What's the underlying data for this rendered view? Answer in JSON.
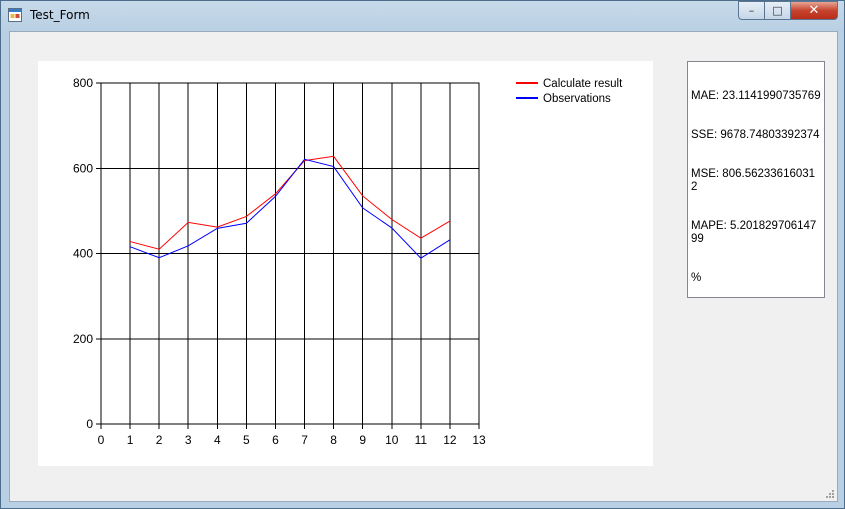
{
  "window": {
    "title": "Test_Form"
  },
  "caption": {
    "minimize": "–",
    "maximize": "□",
    "close": "✕"
  },
  "metrics": {
    "lines": [
      "MAE: 23.1141990735769",
      "SSE: 9678.74803392374",
      "MSE: 806.562336160312",
      "MAPE: 5.20182970614799",
      "%"
    ]
  },
  "chart_data": {
    "type": "line",
    "x": [
      1,
      2,
      3,
      4,
      5,
      6,
      7,
      8,
      9,
      10,
      11,
      12
    ],
    "series": [
      {
        "name": "Calculate result",
        "color": "#ff0000",
        "values": [
          428,
          410,
          473,
          462,
          487,
          540,
          618,
          628,
          535,
          480,
          436,
          476
        ]
      },
      {
        "name": "Observations",
        "color": "#0000ff",
        "values": [
          416,
          390,
          418,
          459,
          471,
          534,
          621,
          604,
          507,
          460,
          389,
          432
        ]
      }
    ],
    "xlim": [
      0,
      13
    ],
    "ylim": [
      0,
      800
    ],
    "xticks": [
      "0",
      "1",
      "2",
      "3",
      "4",
      "5",
      "6",
      "7",
      "8",
      "9",
      "10",
      "11",
      "12",
      "13"
    ],
    "yticks": [
      "0",
      "200",
      "400",
      "600",
      "800"
    ],
    "grid": true,
    "legend": "top-right"
  }
}
